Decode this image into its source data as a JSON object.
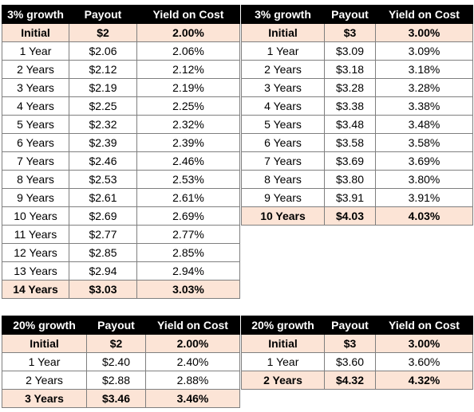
{
  "tables": [
    {
      "headers": [
        "3% growth",
        "Payout",
        "Yield on Cost"
      ],
      "rows": [
        {
          "label": "Initial",
          "payout": "$2",
          "yield": "2.00%",
          "highlight": true
        },
        {
          "label": "1 Year",
          "payout": "$2.06",
          "yield": "2.06%"
        },
        {
          "label": "2 Years",
          "payout": "$2.12",
          "yield": "2.12%"
        },
        {
          "label": "3 Years",
          "payout": "$2.19",
          "yield": "2.19%"
        },
        {
          "label": "4 Years",
          "payout": "$2.25",
          "yield": "2.25%"
        },
        {
          "label": "5 Years",
          "payout": "$2.32",
          "yield": "2.32%"
        },
        {
          "label": "6 Years",
          "payout": "$2.39",
          "yield": "2.39%"
        },
        {
          "label": "7 Years",
          "payout": "$2.46",
          "yield": "2.46%"
        },
        {
          "label": "8 Years",
          "payout": "$2.53",
          "yield": "2.53%"
        },
        {
          "label": "9 Years",
          "payout": "$2.61",
          "yield": "2.61%"
        },
        {
          "label": "10 Years",
          "payout": "$2.69",
          "yield": "2.69%"
        },
        {
          "label": "11 Years",
          "payout": "$2.77",
          "yield": "2.77%"
        },
        {
          "label": "12 Years",
          "payout": "$2.85",
          "yield": "2.85%"
        },
        {
          "label": "13 Years",
          "payout": "$2.94",
          "yield": "2.94%"
        },
        {
          "label": "14 Years",
          "payout": "$3.03",
          "yield": "3.03%",
          "highlight": true
        }
      ]
    },
    {
      "headers": [
        "3% growth",
        "Payout",
        "Yield on Cost"
      ],
      "rows": [
        {
          "label": "Initial",
          "payout": "$3",
          "yield": "3.00%",
          "highlight": true
        },
        {
          "label": "1 Year",
          "payout": "$3.09",
          "yield": "3.09%"
        },
        {
          "label": "2 Years",
          "payout": "$3.18",
          "yield": "3.18%"
        },
        {
          "label": "3 Years",
          "payout": "$3.28",
          "yield": "3.28%"
        },
        {
          "label": "4 Years",
          "payout": "$3.38",
          "yield": "3.38%"
        },
        {
          "label": "5 Years",
          "payout": "$3.48",
          "yield": "3.48%"
        },
        {
          "label": "6 Years",
          "payout": "$3.58",
          "yield": "3.58%"
        },
        {
          "label": "7 Years",
          "payout": "$3.69",
          "yield": "3.69%"
        },
        {
          "label": "8 Years",
          "payout": "$3.80",
          "yield": "3.80%"
        },
        {
          "label": "9 Years",
          "payout": "$3.91",
          "yield": "3.91%"
        },
        {
          "label": "10 Years",
          "payout": "$4.03",
          "yield": "4.03%",
          "highlight": true
        }
      ]
    },
    {
      "headers": [
        "20% growth",
        "Payout",
        "Yield on Cost"
      ],
      "rows": [
        {
          "label": "Initial",
          "payout": "$2",
          "yield": "2.00%",
          "highlight": true
        },
        {
          "label": "1 Year",
          "payout": "$2.40",
          "yield": "2.40%"
        },
        {
          "label": "2 Years",
          "payout": "$2.88",
          "yield": "2.88%"
        },
        {
          "label": "3 Years",
          "payout": "$3.46",
          "yield": "3.46%",
          "highlight": true
        }
      ]
    },
    {
      "headers": [
        "20% growth",
        "Payout",
        "Yield on Cost"
      ],
      "rows": [
        {
          "label": "Initial",
          "payout": "$3",
          "yield": "3.00%",
          "highlight": true
        },
        {
          "label": "1 Year",
          "payout": "$3.60",
          "yield": "3.60%"
        },
        {
          "label": "2 Years",
          "payout": "$4.32",
          "yield": "4.32%",
          "highlight": true
        }
      ]
    }
  ],
  "colors": {
    "header_bg": "#000000",
    "header_fg": "#ffffff",
    "highlight_bg": "#fce4d6",
    "border": "#7f7f7f"
  }
}
